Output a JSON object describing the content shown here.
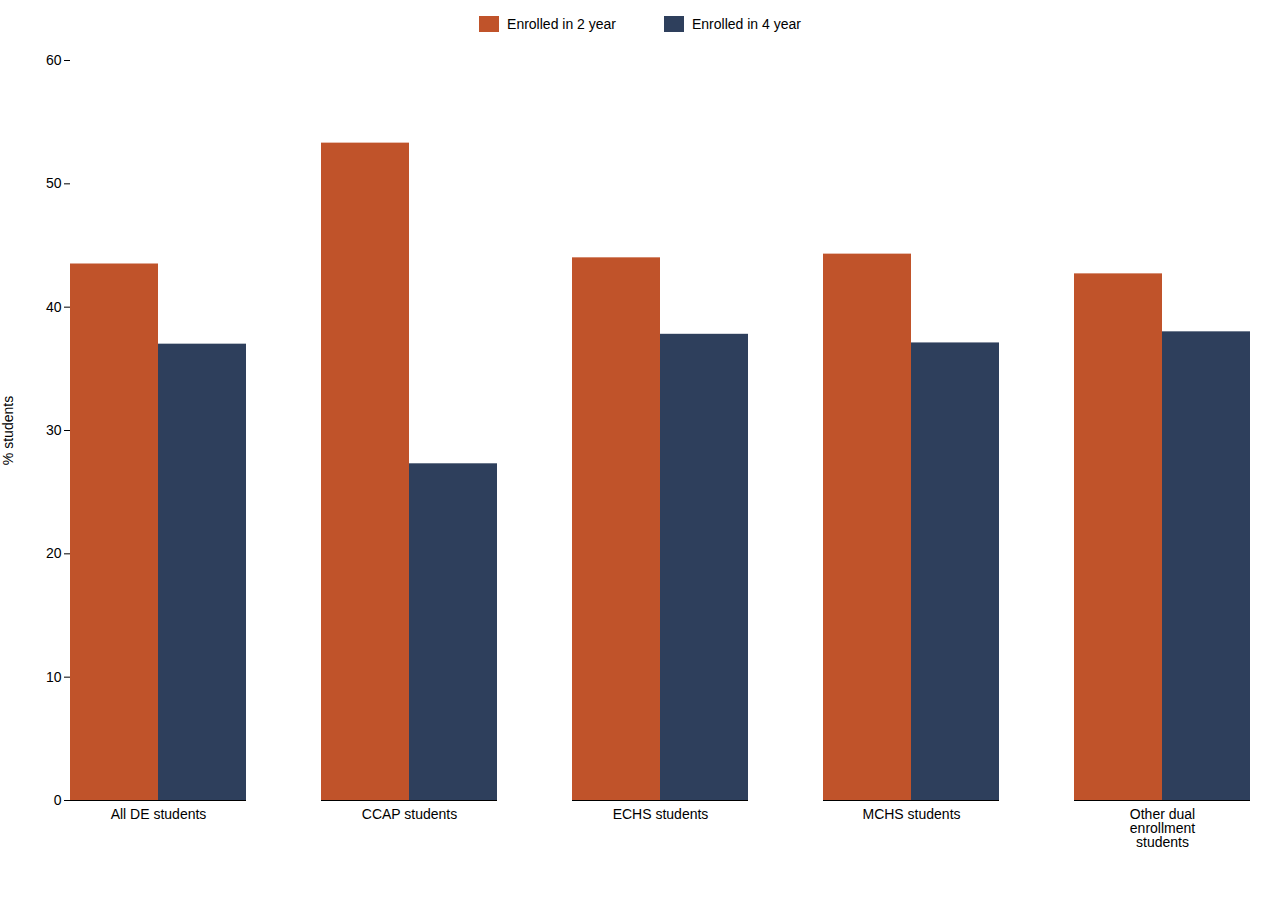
{
  "chart_data": {
    "type": "bar",
    "categories": [
      "All DE students",
      "CCAP students",
      "ECHS students",
      "MCHS students",
      "Other dual\nenrollment\nstudents"
    ],
    "series": [
      {
        "name": "Enrolled in 2 year",
        "color": "#C0532A",
        "values": [
          43.5,
          53.3,
          44.0,
          44.3,
          42.7
        ]
      },
      {
        "name": "Enrolled in 4 year",
        "color": "#2E3F5C",
        "values": [
          37.0,
          27.3,
          37.8,
          37.1,
          38.0
        ]
      }
    ],
    "ylabel": "% students",
    "ylim": [
      0,
      60
    ],
    "yticks": [
      0,
      10,
      20,
      30,
      40,
      50,
      60
    ],
    "grid": false,
    "legend": "top"
  }
}
